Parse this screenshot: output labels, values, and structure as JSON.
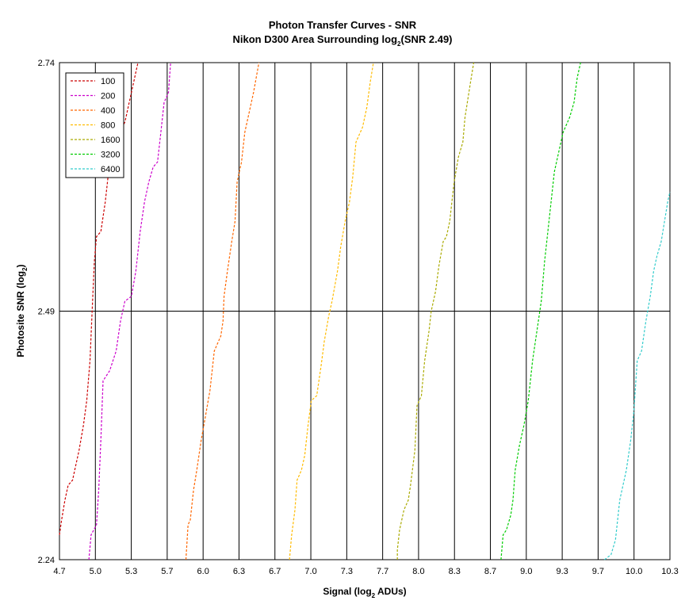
{
  "chart_data": {
    "type": "line",
    "title": "Photon Transfer Curves - SNR",
    "subtitle_prefix": "Nikon D300 Area Surrounding log",
    "subtitle_sub": "2",
    "subtitle_suffix": "(SNR 2.49)",
    "xlabel_prefix": "Signal (log",
    "xlabel_sub": "2",
    "xlabel_suffix": " ADUs)",
    "ylabel_prefix": "Photosite SNR (log",
    "ylabel_sub": "2",
    "ylabel_suffix": ")",
    "xlim": [
      4.7,
      10.3
    ],
    "ylim": [
      2.24,
      2.74
    ],
    "x_ticks": [
      "4.7",
      "5.0",
      "5.3",
      "5.7",
      "6.0",
      "6.3",
      "6.7",
      "7.0",
      "7.3",
      "7.7",
      "8.0",
      "8.3",
      "8.7",
      "9.0",
      "9.3",
      "9.7",
      "10.0",
      "10.3"
    ],
    "y_ticks": [
      "2.24",
      "2.49",
      "2.74"
    ],
    "grid": "vertical lines at every x tick, horizontal line at 2.49",
    "legend_position": "top-left",
    "series": [
      {
        "name": "100",
        "color": "#cc0000",
        "points": [
          [
            4.7,
            2.265
          ],
          [
            4.72,
            2.28
          ],
          [
            4.75,
            2.3
          ],
          [
            4.78,
            2.315
          ],
          [
            4.82,
            2.32
          ],
          [
            4.85,
            2.335
          ],
          [
            4.88,
            2.35
          ],
          [
            4.92,
            2.375
          ],
          [
            4.95,
            2.4
          ],
          [
            4.98,
            2.44
          ],
          [
            5.0,
            2.49
          ],
          [
            5.02,
            2.54
          ],
          [
            5.04,
            2.565
          ],
          [
            5.08,
            2.57
          ],
          [
            5.12,
            2.6
          ],
          [
            5.16,
            2.64
          ],
          [
            5.2,
            2.66
          ],
          [
            5.25,
            2.67
          ],
          [
            5.3,
            2.68
          ],
          [
            5.34,
            2.7
          ],
          [
            5.38,
            2.72
          ],
          [
            5.42,
            2.74
          ]
        ]
      },
      {
        "name": "200",
        "color": "#cc00cc",
        "points": [
          [
            4.97,
            2.24
          ],
          [
            4.99,
            2.265
          ],
          [
            5.04,
            2.275
          ],
          [
            5.06,
            2.31
          ],
          [
            5.08,
            2.36
          ],
          [
            5.1,
            2.42
          ],
          [
            5.16,
            2.43
          ],
          [
            5.22,
            2.45
          ],
          [
            5.26,
            2.48
          ],
          [
            5.3,
            2.5
          ],
          [
            5.36,
            2.505
          ],
          [
            5.4,
            2.53
          ],
          [
            5.44,
            2.57
          ],
          [
            5.48,
            2.6
          ],
          [
            5.52,
            2.62
          ],
          [
            5.56,
            2.635
          ],
          [
            5.6,
            2.64
          ],
          [
            5.63,
            2.67
          ],
          [
            5.66,
            2.7
          ],
          [
            5.7,
            2.71
          ],
          [
            5.72,
            2.74
          ]
        ]
      },
      {
        "name": "400",
        "color": "#ff6600",
        "points": [
          [
            5.86,
            2.24
          ],
          [
            5.88,
            2.275
          ],
          [
            5.9,
            2.28
          ],
          [
            5.93,
            2.31
          ],
          [
            5.96,
            2.33
          ],
          [
            6.0,
            2.36
          ],
          [
            6.04,
            2.385
          ],
          [
            6.08,
            2.41
          ],
          [
            6.12,
            2.45
          ],
          [
            6.18,
            2.465
          ],
          [
            6.2,
            2.48
          ],
          [
            6.21,
            2.505
          ],
          [
            6.24,
            2.53
          ],
          [
            6.28,
            2.56
          ],
          [
            6.31,
            2.58
          ],
          [
            6.33,
            2.62
          ],
          [
            6.37,
            2.64
          ],
          [
            6.4,
            2.67
          ],
          [
            6.44,
            2.69
          ],
          [
            6.48,
            2.71
          ],
          [
            6.53,
            2.74
          ]
        ]
      },
      {
        "name": "800",
        "color": "#ffbb00",
        "points": [
          [
            6.81,
            2.24
          ],
          [
            6.83,
            2.265
          ],
          [
            6.86,
            2.29
          ],
          [
            6.88,
            2.32
          ],
          [
            6.92,
            2.33
          ],
          [
            6.95,
            2.345
          ],
          [
            6.98,
            2.375
          ],
          [
            7.01,
            2.4
          ],
          [
            7.06,
            2.405
          ],
          [
            7.1,
            2.435
          ],
          [
            7.13,
            2.46
          ],
          [
            7.17,
            2.485
          ],
          [
            7.2,
            2.5
          ],
          [
            7.25,
            2.53
          ],
          [
            7.28,
            2.555
          ],
          [
            7.32,
            2.58
          ],
          [
            7.36,
            2.6
          ],
          [
            7.39,
            2.625
          ],
          [
            7.42,
            2.66
          ],
          [
            7.48,
            2.675
          ],
          [
            7.52,
            2.695
          ],
          [
            7.55,
            2.72
          ],
          [
            7.58,
            2.74
          ]
        ]
      },
      {
        "name": "1600",
        "color": "#aaaa00",
        "points": [
          [
            7.8,
            2.24
          ],
          [
            7.8,
            2.25
          ],
          [
            7.82,
            2.27
          ],
          [
            7.86,
            2.29
          ],
          [
            7.9,
            2.3
          ],
          [
            7.92,
            2.315
          ],
          [
            7.96,
            2.35
          ],
          [
            7.98,
            2.395
          ],
          [
            8.02,
            2.405
          ],
          [
            8.05,
            2.44
          ],
          [
            8.09,
            2.47
          ],
          [
            8.11,
            2.49
          ],
          [
            8.15,
            2.51
          ],
          [
            8.18,
            2.535
          ],
          [
            8.22,
            2.56
          ],
          [
            8.25,
            2.565
          ],
          [
            8.28,
            2.58
          ],
          [
            8.32,
            2.62
          ],
          [
            8.36,
            2.645
          ],
          [
            8.4,
            2.66
          ],
          [
            8.42,
            2.685
          ],
          [
            8.47,
            2.72
          ],
          [
            8.5,
            2.74
          ]
        ]
      },
      {
        "name": "3200",
        "color": "#00cc00",
        "points": [
          [
            8.75,
            2.24
          ],
          [
            8.77,
            2.265
          ],
          [
            8.8,
            2.27
          ],
          [
            8.84,
            2.285
          ],
          [
            8.86,
            2.3
          ],
          [
            8.88,
            2.33
          ],
          [
            8.92,
            2.355
          ],
          [
            8.96,
            2.375
          ],
          [
            9.0,
            2.4
          ],
          [
            9.04,
            2.44
          ],
          [
            9.08,
            2.47
          ],
          [
            9.12,
            2.5
          ],
          [
            9.15,
            2.54
          ],
          [
            9.18,
            2.57
          ],
          [
            9.21,
            2.6
          ],
          [
            9.24,
            2.63
          ],
          [
            9.28,
            2.65
          ],
          [
            9.32,
            2.67
          ],
          [
            9.38,
            2.685
          ],
          [
            9.42,
            2.7
          ],
          [
            9.45,
            2.725
          ],
          [
            9.48,
            2.74
          ]
        ]
      },
      {
        "name": "6400",
        "color": "#33cccc",
        "points": [
          [
            9.7,
            2.24
          ],
          [
            9.76,
            2.245
          ],
          [
            9.8,
            2.26
          ],
          [
            9.84,
            2.3
          ],
          [
            9.9,
            2.33
          ],
          [
            9.94,
            2.36
          ],
          [
            9.97,
            2.39
          ],
          [
            10.0,
            2.44
          ],
          [
            10.04,
            2.45
          ],
          [
            10.08,
            2.48
          ],
          [
            10.12,
            2.505
          ],
          [
            10.15,
            2.53
          ],
          [
            10.18,
            2.545
          ],
          [
            10.22,
            2.56
          ],
          [
            10.25,
            2.58
          ],
          [
            10.28,
            2.6
          ],
          [
            10.3,
            2.61
          ]
        ]
      }
    ]
  }
}
